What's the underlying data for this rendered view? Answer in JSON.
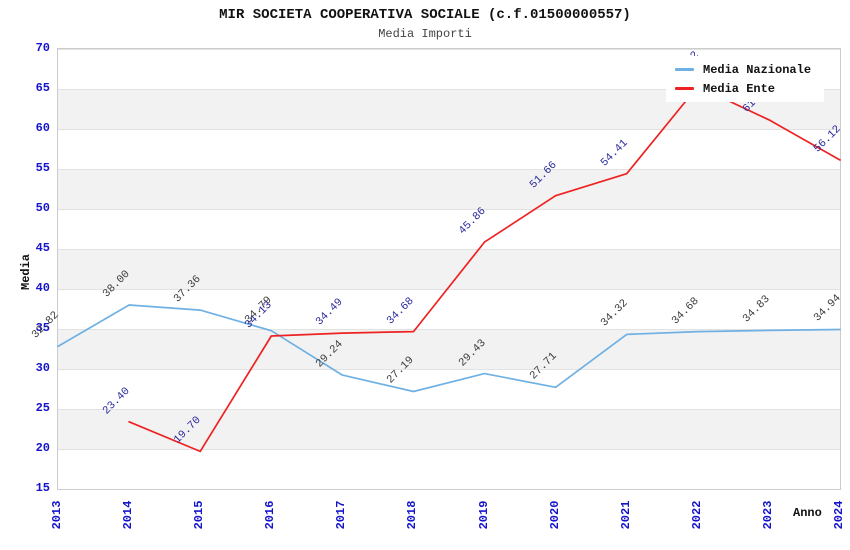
{
  "title": "MIR SOCIETA COOPERATIVA SOCIALE (c.f.01500000557)",
  "subtitle": "Media Importi",
  "y_axis": {
    "label": "Media",
    "ticks": [
      70,
      65,
      60,
      55,
      50,
      45,
      40,
      35,
      30,
      25,
      20,
      15
    ]
  },
  "x_axis": {
    "label": "Anno",
    "ticks": [
      "2013",
      "2014",
      "2015",
      "2016",
      "2017",
      "2018",
      "2019",
      "2020",
      "2021",
      "2022",
      "2023",
      "2024"
    ]
  },
  "legend": {
    "items": [
      {
        "label": "Media Nazionale",
        "color": "#6fb1e4"
      },
      {
        "label": "Media Ente",
        "color": "#ee2222"
      }
    ]
  },
  "colors": {
    "tick_text": "#1414cc",
    "band_fill": "#f2f2f2",
    "plot_border": "#cccccc",
    "gridline": "#e2e2e2",
    "nazionale_line": "#6fb1e4",
    "ente_line": "#ee2222",
    "nazionale_label_text": "#3c3c3c",
    "ente_label_text": "#2b2b9c"
  },
  "chart_data": {
    "type": "line",
    "x": [
      2013,
      2014,
      2015,
      2016,
      2017,
      2018,
      2019,
      2020,
      2021,
      2022,
      2023,
      2024
    ],
    "ylim": [
      15,
      70
    ],
    "grid": "horizontal gridlines every 5 units with alternating white/gray bands",
    "legend_position": "inset top-right (white box overlapping plot)",
    "series": [
      {
        "name": "Media Nazionale",
        "color": "#6fb1e4",
        "label_color": "#3c3c3c",
        "values": [
          32.82,
          38.0,
          37.36,
          34.79,
          29.24,
          27.19,
          29.43,
          27.71,
          34.32,
          34.68,
          34.83,
          34.94
        ],
        "labels": [
          "32.82",
          "38.00",
          "37.36",
          "34.79",
          "29.24",
          "27.19",
          "29.43",
          "27.71",
          "34.32",
          "34.68",
          "34.83",
          "34.94"
        ]
      },
      {
        "name": "Media Ente",
        "color": "#ee2222",
        "label_color": "#2b2b9c",
        "values": [
          null,
          23.4,
          19.7,
          34.13,
          34.49,
          34.68,
          45.86,
          51.66,
          54.41,
          65.32,
          61.15,
          56.12
        ],
        "labels": [
          null,
          "23.40",
          "19.70",
          "34.13",
          "34.49",
          "34.68",
          "45.86",
          "51.66",
          "54.41",
          "65.32",
          "61.15",
          "56.12"
        ],
        "note": "2022 value estimated: its label is hidden behind the legend box; 2023 label partially hidden (only 61.1 visible)"
      }
    ]
  }
}
